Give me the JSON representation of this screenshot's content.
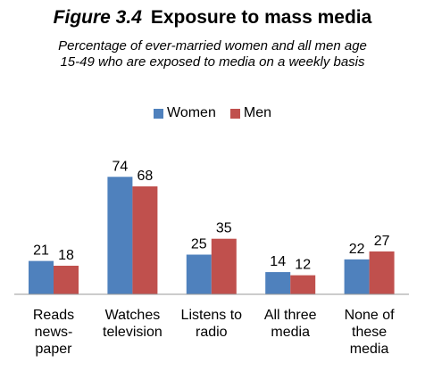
{
  "header": {
    "figure_label": "Figure 3.4",
    "title": "Exposure to mass media",
    "subtitle": "Percentage of ever-married women and all men age 15-49 who are exposed to media on a weekly basis"
  },
  "chart_data": {
    "type": "bar",
    "categories": [
      "Reads news-paper",
      "Watches television",
      "Listens to radio",
      "All three media",
      "None of these media"
    ],
    "category_lines": [
      [
        "Reads",
        "news-",
        "paper"
      ],
      [
        "Watches",
        "television"
      ],
      [
        "Listens to",
        "radio"
      ],
      [
        "All three",
        "media"
      ],
      [
        "None of",
        "these",
        "media"
      ]
    ],
    "series": [
      {
        "name": "Women",
        "color": "#4F81BD",
        "values": [
          21,
          74,
          25,
          14,
          22
        ]
      },
      {
        "name": "Men",
        "color": "#C0504D",
        "values": [
          18,
          68,
          35,
          12,
          27
        ]
      }
    ],
    "ylim": [
      0,
      80
    ],
    "grid": false,
    "legend_position": "top-center"
  }
}
